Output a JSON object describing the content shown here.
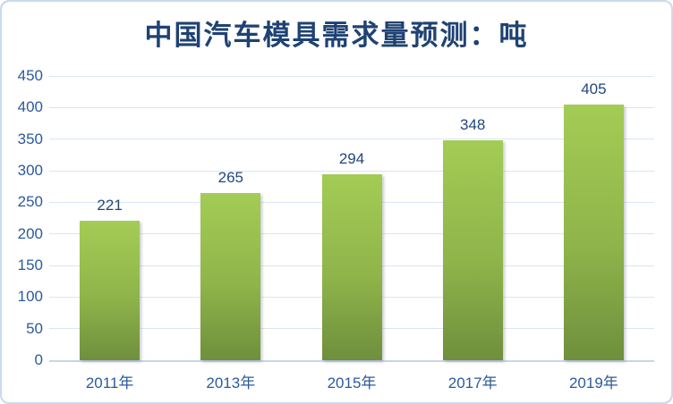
{
  "chart_data": {
    "type": "bar",
    "title": "中国汽车模具需求量预测：吨",
    "categories": [
      "2011年",
      "2013年",
      "2015年",
      "2017年",
      "2019年"
    ],
    "values": [
      221,
      265,
      294,
      348,
      405
    ],
    "xlabel": "",
    "ylabel": "",
    "ylim": [
      0,
      450
    ],
    "ytick_interval": 50,
    "yticks": [
      0,
      50,
      100,
      150,
      200,
      250,
      300,
      350,
      400,
      450
    ],
    "grid": "horizontal",
    "legend": "none",
    "data_labels": "above-bars",
    "colors": {
      "bar_gradient_top": "#a3cc55",
      "bar_gradient_mid": "#8fb44a",
      "bar_gradient_bottom": "#6f8f3d",
      "title_text": "#1f4273",
      "axis_tick_text": "#2c5a9d",
      "value_label_text": "#24477d",
      "gridline": "#dbe5f4",
      "axis_line": "#c7d6ec",
      "frame_border": "#cbdaf0",
      "background": "#ffffff"
    }
  }
}
